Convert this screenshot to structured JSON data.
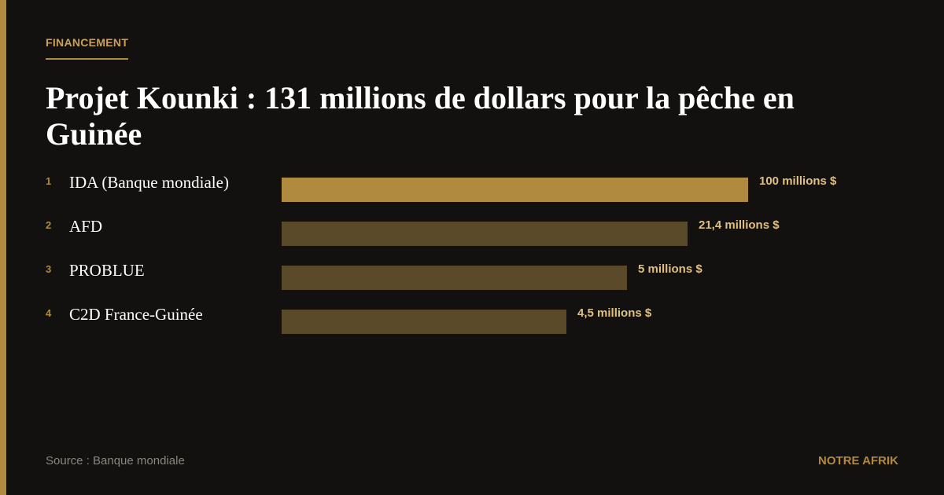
{
  "kicker": "FINANCEMENT",
  "title": "Projet Kounki : 131 millions de dollars pour la pêche en Guinée",
  "items": [
    {
      "rank": 1,
      "label": "IDA (Banque mondiale)",
      "amount": "100 millions $"
    },
    {
      "rank": 2,
      "label": "AFD",
      "amount": "21,4 millions $"
    },
    {
      "rank": 3,
      "label": "PROBLUE",
      "amount": "5 millions $"
    },
    {
      "rank": 4,
      "label": "C2D France-Guinée",
      "amount": "4,5 millions $"
    }
  ],
  "footer": {
    "source": "Source : Banque mondiale",
    "brand": "NOTRE AFRIK"
  }
}
